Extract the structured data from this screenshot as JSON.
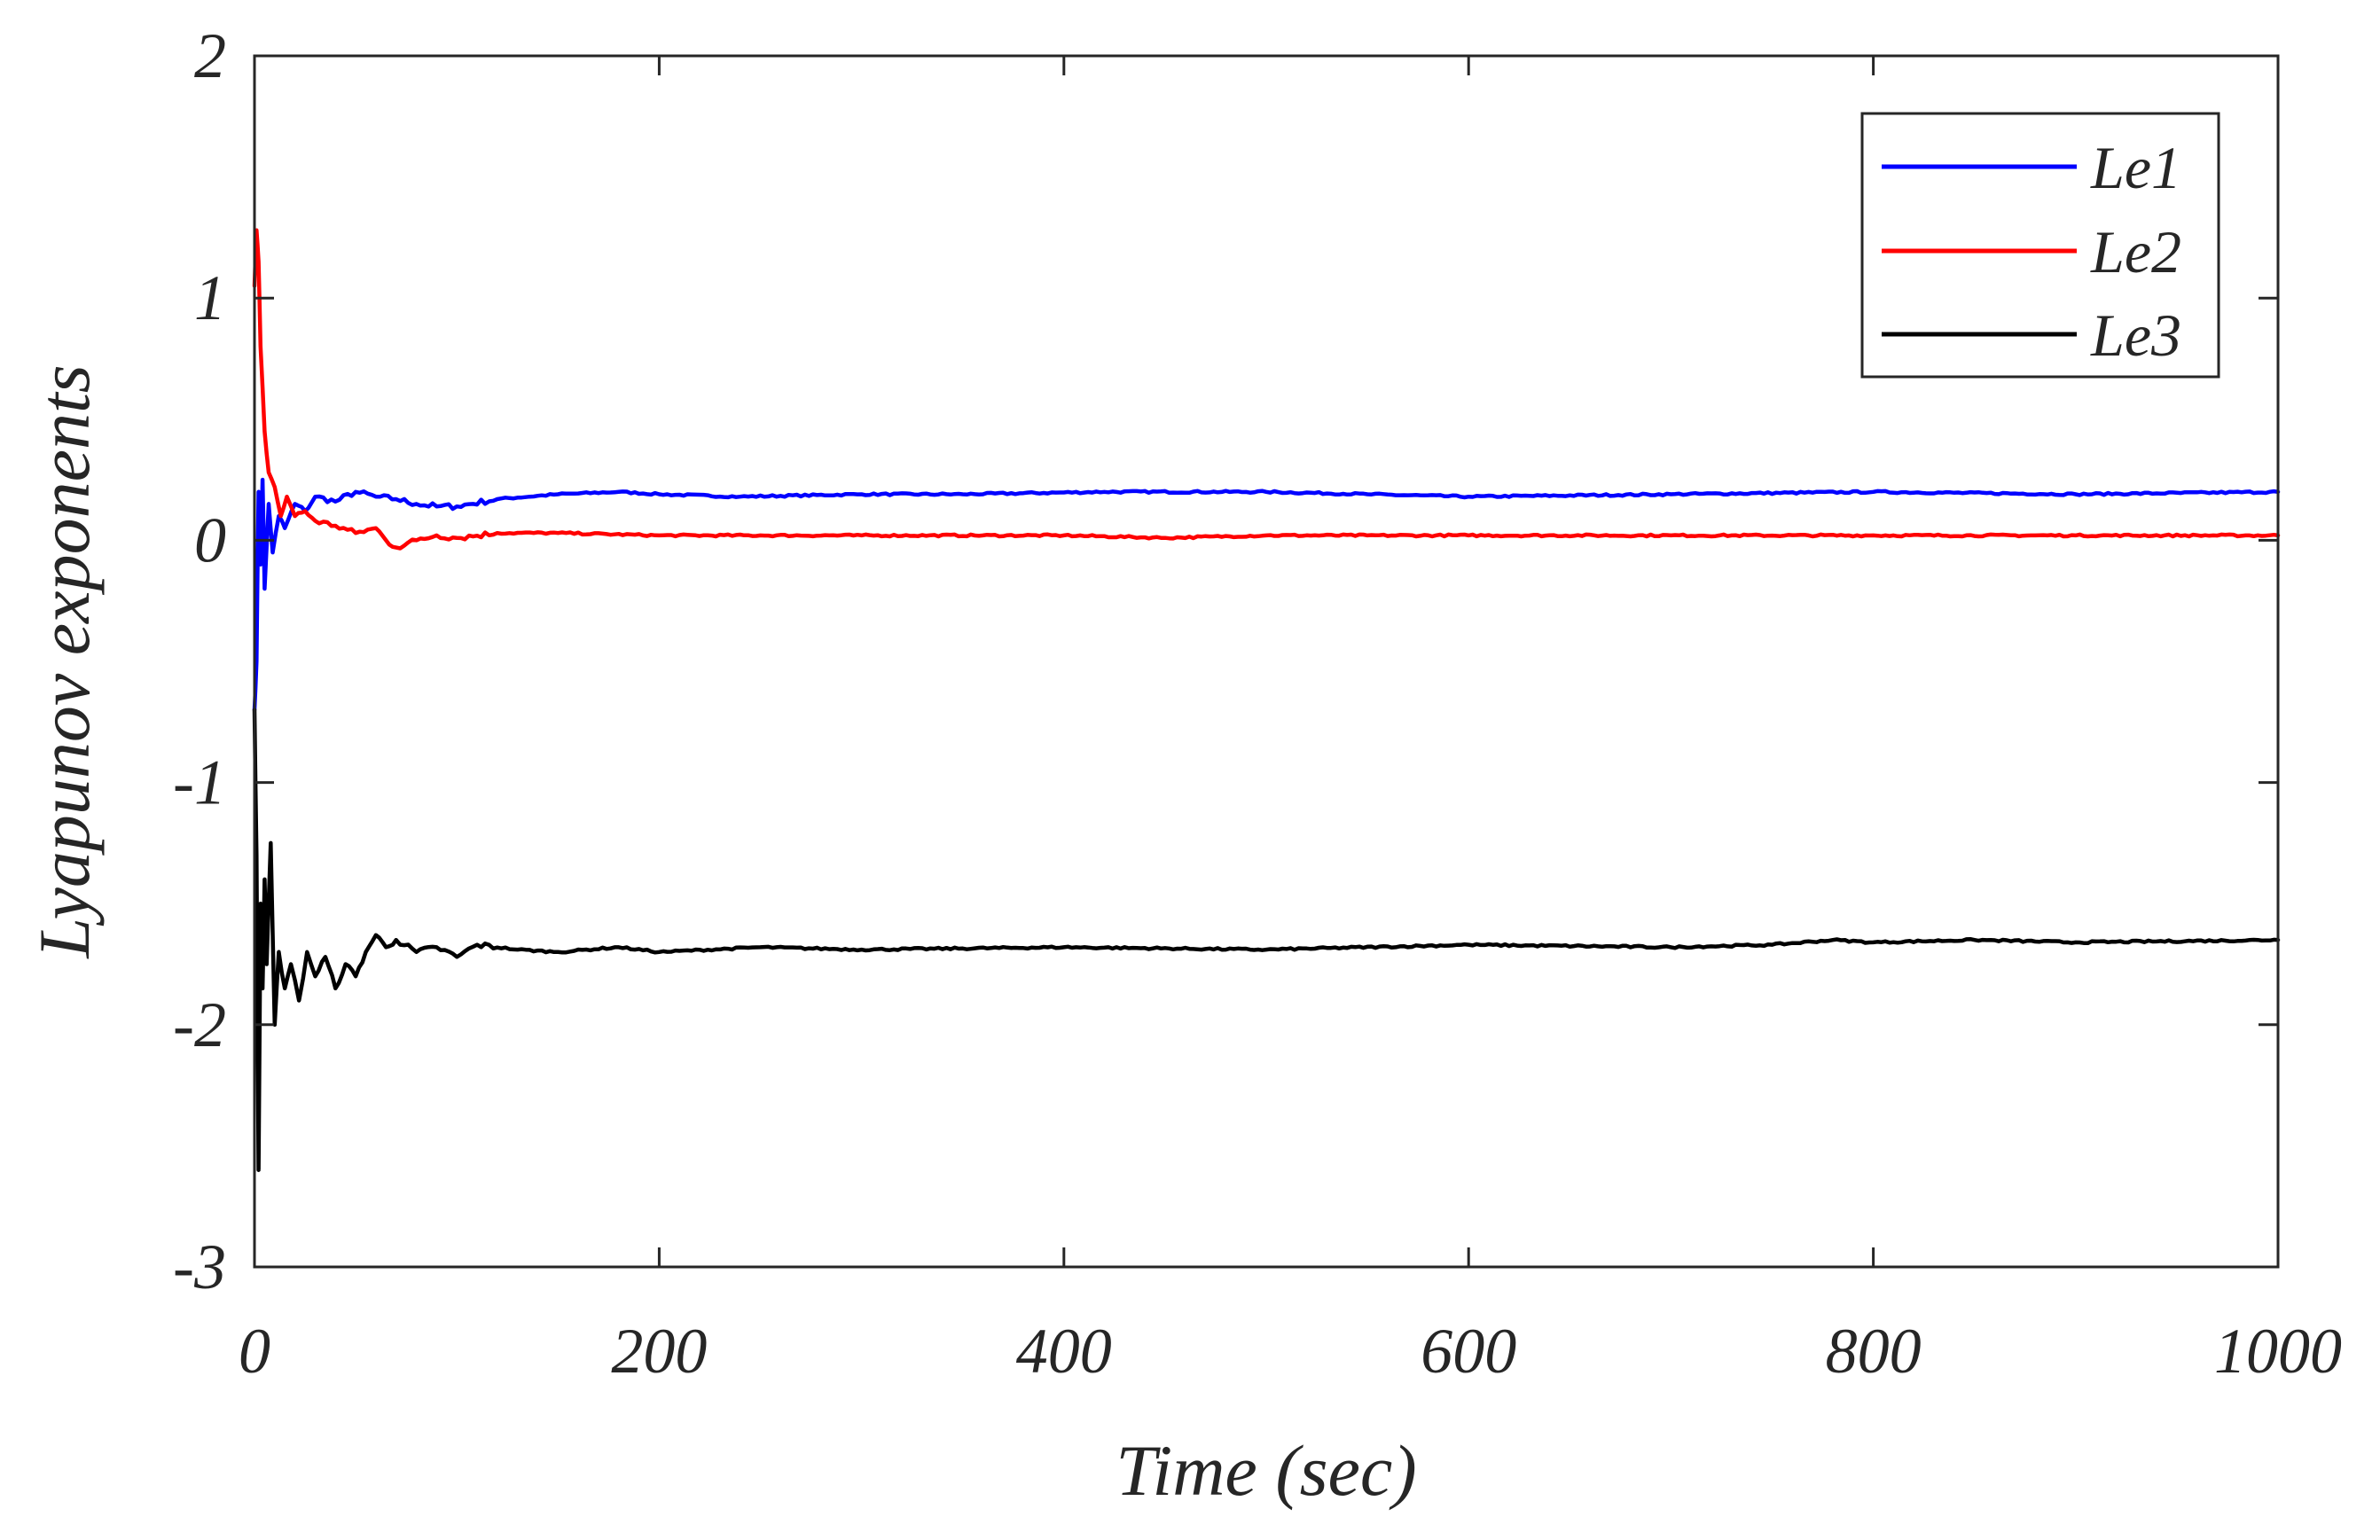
{
  "chart_data": {
    "type": "line",
    "title": "",
    "xlabel": "Time (sec)",
    "ylabel": "Lyapunov exponents",
    "xlim": [
      0,
      1000
    ],
    "ylim": [
      -3,
      2
    ],
    "xticks": [
      0,
      200,
      400,
      600,
      800,
      1000
    ],
    "yticks": [
      -3,
      -2,
      -1,
      0,
      1,
      2
    ],
    "xtick_labels": [
      "0",
      "200",
      "400",
      "600",
      "800",
      "1000"
    ],
    "ytick_labels": [
      "-3",
      "-2",
      "-1",
      "0",
      "1",
      "2"
    ],
    "grid": false,
    "legend_position": "top-right",
    "series": [
      {
        "name": "Le1",
        "color": "#0000ff",
        "points": [
          [
            0,
            -0.7
          ],
          [
            1,
            -0.5
          ],
          [
            2,
            0.2
          ],
          [
            3,
            -0.1
          ],
          [
            4,
            0.25
          ],
          [
            5,
            -0.2
          ],
          [
            7,
            0.15
          ],
          [
            9,
            -0.05
          ],
          [
            12,
            0.1
          ],
          [
            15,
            0.05
          ],
          [
            20,
            0.15
          ],
          [
            25,
            0.12
          ],
          [
            30,
            0.18
          ],
          [
            40,
            0.16
          ],
          [
            50,
            0.2
          ],
          [
            60,
            0.18
          ],
          [
            70,
            0.17
          ],
          [
            80,
            0.15
          ],
          [
            90,
            0.14
          ],
          [
            100,
            0.14
          ],
          [
            120,
            0.17
          ],
          [
            150,
            0.19
          ],
          [
            180,
            0.2
          ],
          [
            200,
            0.19
          ],
          [
            240,
            0.18
          ],
          [
            300,
            0.19
          ],
          [
            350,
            0.19
          ],
          [
            420,
            0.2
          ],
          [
            500,
            0.2
          ],
          [
            550,
            0.19
          ],
          [
            600,
            0.18
          ],
          [
            700,
            0.19
          ],
          [
            800,
            0.2
          ],
          [
            900,
            0.19
          ],
          [
            1000,
            0.2
          ]
        ]
      },
      {
        "name": "Le2",
        "color": "#ff0000",
        "points": [
          [
            0,
            1.05
          ],
          [
            1,
            1.28
          ],
          [
            2,
            1.15
          ],
          [
            3,
            0.8
          ],
          [
            5,
            0.45
          ],
          [
            7,
            0.28
          ],
          [
            10,
            0.22
          ],
          [
            13,
            0.1
          ],
          [
            16,
            0.18
          ],
          [
            20,
            0.1
          ],
          [
            25,
            0.12
          ],
          [
            30,
            0.08
          ],
          [
            40,
            0.06
          ],
          [
            50,
            0.03
          ],
          [
            60,
            0.05
          ],
          [
            65,
            0.0
          ],
          [
            70,
            -0.03
          ],
          [
            80,
            0.0
          ],
          [
            90,
            0.02
          ],
          [
            100,
            0.01
          ],
          [
            120,
            0.03
          ],
          [
            150,
            0.03
          ],
          [
            200,
            0.02
          ],
          [
            250,
            0.02
          ],
          [
            300,
            0.02
          ],
          [
            400,
            0.02
          ],
          [
            450,
            0.01
          ],
          [
            500,
            0.02
          ],
          [
            550,
            0.02
          ],
          [
            600,
            0.02
          ],
          [
            700,
            0.02
          ],
          [
            800,
            0.02
          ],
          [
            900,
            0.02
          ],
          [
            1000,
            0.02
          ]
        ]
      },
      {
        "name": "Le3",
        "color": "#000000",
        "points": [
          [
            0,
            -0.7
          ],
          [
            1,
            -1.3
          ],
          [
            2,
            -2.6
          ],
          [
            3,
            -1.5
          ],
          [
            4,
            -1.85
          ],
          [
            5,
            -1.4
          ],
          [
            6,
            -1.75
          ],
          [
            8,
            -1.25
          ],
          [
            10,
            -2.0
          ],
          [
            12,
            -1.7
          ],
          [
            15,
            -1.85
          ],
          [
            18,
            -1.75
          ],
          [
            22,
            -1.9
          ],
          [
            26,
            -1.7
          ],
          [
            30,
            -1.8
          ],
          [
            35,
            -1.72
          ],
          [
            40,
            -1.85
          ],
          [
            45,
            -1.75
          ],
          [
            50,
            -1.8
          ],
          [
            55,
            -1.7
          ],
          [
            60,
            -1.63
          ],
          [
            65,
            -1.68
          ],
          [
            70,
            -1.65
          ],
          [
            80,
            -1.7
          ],
          [
            90,
            -1.68
          ],
          [
            100,
            -1.72
          ],
          [
            110,
            -1.67
          ],
          [
            130,
            -1.69
          ],
          [
            150,
            -1.7
          ],
          [
            180,
            -1.68
          ],
          [
            200,
            -1.7
          ],
          [
            250,
            -1.68
          ],
          [
            300,
            -1.69
          ],
          [
            400,
            -1.68
          ],
          [
            500,
            -1.69
          ],
          [
            600,
            -1.67
          ],
          [
            700,
            -1.68
          ],
          [
            750,
            -1.67
          ],
          [
            780,
            -1.65
          ],
          [
            800,
            -1.66
          ],
          [
            850,
            -1.65
          ],
          [
            900,
            -1.66
          ],
          [
            1000,
            -1.65
          ]
        ]
      }
    ]
  }
}
